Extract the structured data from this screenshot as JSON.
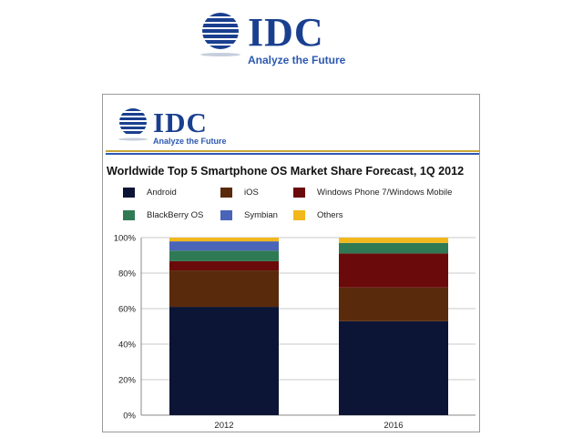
{
  "header_logo": {
    "brand": "IDC",
    "tagline": "Analyze the Future"
  },
  "chart_logo": {
    "brand": "IDC",
    "tagline": "Analyze the Future"
  },
  "colors": {
    "brand_blue": "#1a3f8f",
    "gold_rule": "#c9a63a"
  },
  "chart_data": {
    "type": "bar",
    "stacked": true,
    "title": "Worldwide Top 5 Smartphone OS Market Share Forecast, 1Q 2012",
    "categories": [
      "2012",
      "2016"
    ],
    "series": [
      {
        "name": "Android",
        "color": "#0c1535",
        "values": [
          61.0,
          52.9
        ]
      },
      {
        "name": "iOS",
        "color": "#5a2a0c",
        "values": [
          20.5,
          19.0
        ]
      },
      {
        "name": "Windows Phone 7/Windows Mobile",
        "color": "#6b0a0a",
        "values": [
          5.2,
          19.2
        ]
      },
      {
        "name": "BlackBerry OS",
        "color": "#2f7a55",
        "values": [
          6.0,
          5.9
        ]
      },
      {
        "name": "Symbian",
        "color": "#4a64b8",
        "values": [
          5.2,
          0.0
        ]
      },
      {
        "name": "Others",
        "color": "#f1b71c",
        "values": [
          2.1,
          3.0
        ]
      }
    ],
    "yticks": [
      "0%",
      "20%",
      "40%",
      "60%",
      "80%",
      "100%"
    ],
    "ylim": [
      0,
      100
    ],
    "grid": true,
    "legend_position": "top"
  }
}
